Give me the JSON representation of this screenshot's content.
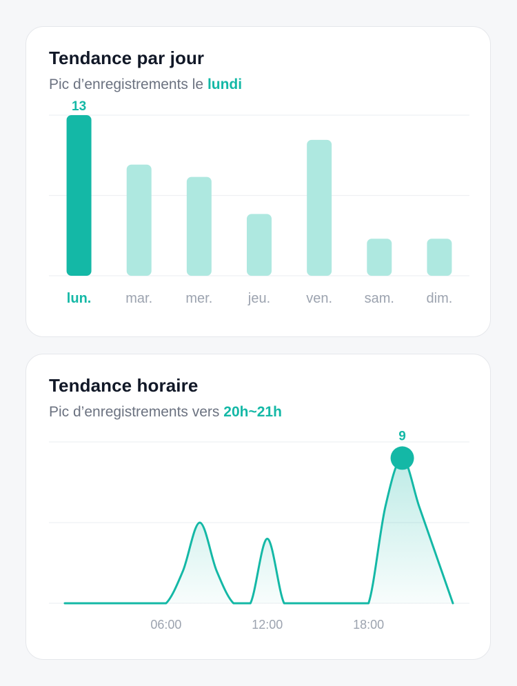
{
  "colors": {
    "accent": "#14b8a6",
    "accent_light": "#aee8e0",
    "muted": "#9ca3af",
    "grid": "#eef0f3"
  },
  "day_card": {
    "title": "Tendance par jour",
    "subtitle_prefix": "Pic d’enregistrements le ",
    "subtitle_highlight": "lundi"
  },
  "hour_card": {
    "title": "Tendance horaire",
    "subtitle_prefix": "Pic d’enregistrements vers ",
    "subtitle_highlight": "20h~21h"
  },
  "chart_data": [
    {
      "type": "bar",
      "categories": [
        "lun.",
        "mar.",
        "mer.",
        "jeu.",
        "ven.",
        "sam.",
        "dim."
      ],
      "values": [
        13,
        9,
        8,
        5,
        11,
        3,
        3
      ],
      "highlight_index": 0,
      "peak_label": "13",
      "ylim": [
        0,
        13
      ],
      "grid": true
    },
    {
      "type": "area",
      "x_ticks": [
        "06:00",
        "12:00",
        "18:00"
      ],
      "x_tick_values": [
        6,
        12,
        18
      ],
      "x": [
        0,
        1,
        2,
        3,
        4,
        5,
        6,
        7,
        8,
        9,
        10,
        11,
        12,
        13,
        14,
        15,
        16,
        17,
        18,
        19,
        20,
        21,
        22,
        23
      ],
      "values": [
        0,
        0,
        0,
        0,
        0,
        0,
        0,
        2,
        5,
        2,
        0,
        0,
        4,
        0,
        0,
        0,
        0,
        0,
        0,
        6,
        9,
        6,
        3,
        0
      ],
      "peak_x": 20,
      "peak_label": "9",
      "ylim": [
        0,
        10
      ],
      "grid": true
    }
  ]
}
